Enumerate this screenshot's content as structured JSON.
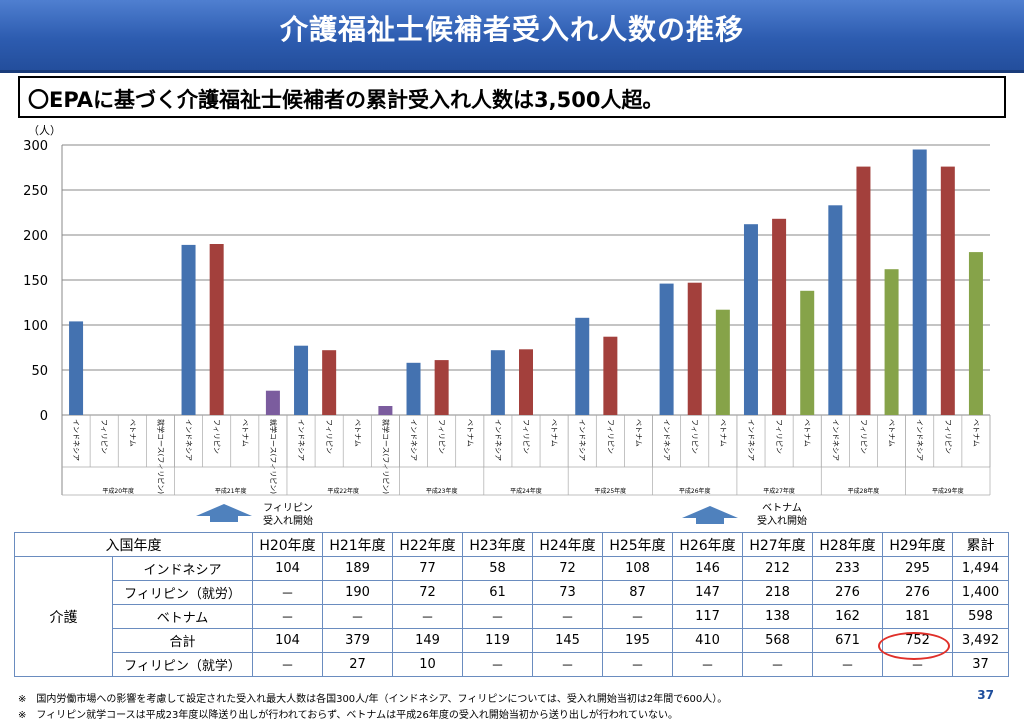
{
  "title": "介護福祉士候補者受入れ人数の推移",
  "summary": "〇EPAに基づく介護福祉士候補者の累計受入れ人数は3,500人超。",
  "colors": {
    "indonesia": "#4472b0",
    "philippines": "#a3403c",
    "vietnam": "#86a349",
    "philippines_study": "#7b5c9e"
  },
  "chart_data": {
    "type": "bar",
    "ylabel": "（人）",
    "ylim": [
      0,
      300
    ],
    "yticks": [
      0,
      50,
      100,
      150,
      200,
      250,
      300
    ],
    "grid": true,
    "groups": [
      {
        "label": "平成20年度",
        "bars": [
          {
            "name": "インドネシア",
            "value": 104,
            "series": "indonesia"
          },
          {
            "name": "フィリピン",
            "value": 0,
            "series": "philippines"
          },
          {
            "name": "ベトナム",
            "value": 0,
            "series": "vietnam"
          },
          {
            "name": "就学コース(フィリピン)",
            "value": 0,
            "series": "philippines_study"
          }
        ]
      },
      {
        "label": "平成21年度",
        "bars": [
          {
            "name": "インドネシア",
            "value": 189,
            "series": "indonesia"
          },
          {
            "name": "フィリピン",
            "value": 190,
            "series": "philippines"
          },
          {
            "name": "ベトナム",
            "value": 0,
            "series": "vietnam"
          },
          {
            "name": "就学コース(フィリピン)",
            "value": 27,
            "series": "philippines_study"
          }
        ]
      },
      {
        "label": "平成22年度",
        "bars": [
          {
            "name": "インドネシア",
            "value": 77,
            "series": "indonesia"
          },
          {
            "name": "フィリピン",
            "value": 72,
            "series": "philippines"
          },
          {
            "name": "ベトナム",
            "value": 0,
            "series": "vietnam"
          },
          {
            "name": "就学コース(フィリピン)",
            "value": 10,
            "series": "philippines_study"
          }
        ]
      },
      {
        "label": "平成23年度",
        "bars": [
          {
            "name": "インドネシア",
            "value": 58,
            "series": "indonesia"
          },
          {
            "name": "フィリピン",
            "value": 61,
            "series": "philippines"
          },
          {
            "name": "ベトナム",
            "value": 0,
            "series": "vietnam"
          }
        ]
      },
      {
        "label": "平成24年度",
        "bars": [
          {
            "name": "インドネシア",
            "value": 72,
            "series": "indonesia"
          },
          {
            "name": "フィリピン",
            "value": 73,
            "series": "philippines"
          },
          {
            "name": "ベトナム",
            "value": 0,
            "series": "vietnam"
          }
        ]
      },
      {
        "label": "平成25年度",
        "bars": [
          {
            "name": "インドネシア",
            "value": 108,
            "series": "indonesia"
          },
          {
            "name": "フィリピン",
            "value": 87,
            "series": "philippines"
          },
          {
            "name": "ベトナム",
            "value": 0,
            "series": "vietnam"
          }
        ]
      },
      {
        "label": "平成26年度",
        "bars": [
          {
            "name": "インドネシア",
            "value": 146,
            "series": "indonesia"
          },
          {
            "name": "フィリピン",
            "value": 147,
            "series": "philippines"
          },
          {
            "name": "ベトナム",
            "value": 117,
            "series": "vietnam"
          }
        ]
      },
      {
        "label": "平成27年度",
        "bars": [
          {
            "name": "インドネシア",
            "value": 212,
            "series": "indonesia"
          },
          {
            "name": "フィリピン",
            "value": 218,
            "series": "philippines"
          },
          {
            "name": "ベトナム",
            "value": 138,
            "series": "vietnam"
          }
        ]
      },
      {
        "label": "平成28年度",
        "bars": [
          {
            "name": "インドネシア",
            "value": 233,
            "series": "indonesia"
          },
          {
            "name": "フィリピン",
            "value": 276,
            "series": "philippines"
          },
          {
            "name": "ベトナム",
            "value": 162,
            "series": "vietnam"
          }
        ]
      },
      {
        "label": "平成29年度",
        "bars": [
          {
            "name": "インドネシア",
            "value": 295,
            "series": "indonesia"
          },
          {
            "name": "フィリピン",
            "value": 276,
            "series": "philippines"
          },
          {
            "name": "ベトナム",
            "value": 181,
            "series": "vietnam"
          }
        ]
      }
    ]
  },
  "annotations": {
    "philippines_start": [
      "フィリピン",
      "受入れ開始"
    ],
    "vietnam_start": [
      "ベトナム",
      "受入れ開始"
    ]
  },
  "table": {
    "header_label": "入国年度",
    "years": [
      "H20年度",
      "H21年度",
      "H22年度",
      "H23年度",
      "H24年度",
      "H25年度",
      "H26年度",
      "H27年度",
      "H28年度",
      "H29年度"
    ],
    "total_label": "累計",
    "group_label": "介護",
    "rows": [
      {
        "label": "インドネシア",
        "values": [
          "104",
          "189",
          "77",
          "58",
          "72",
          "108",
          "146",
          "212",
          "233",
          "295"
        ],
        "total": "1,494"
      },
      {
        "label": "フィリピン（就労）",
        "values": [
          "－",
          "190",
          "72",
          "61",
          "73",
          "87",
          "147",
          "218",
          "276",
          "276"
        ],
        "total": "1,400"
      },
      {
        "label": "ベトナム",
        "values": [
          "－",
          "－",
          "－",
          "－",
          "－",
          "－",
          "117",
          "138",
          "162",
          "181"
        ],
        "total": "598"
      },
      {
        "label": "合計",
        "values": [
          "104",
          "379",
          "149",
          "119",
          "145",
          "195",
          "410",
          "568",
          "671",
          "752"
        ],
        "total": "3,492"
      },
      {
        "label": "フィリピン（就学）",
        "values": [
          "－",
          "27",
          "10",
          "－",
          "－",
          "－",
          "－",
          "－",
          "－",
          "－"
        ],
        "total": "37"
      }
    ]
  },
  "footnotes": [
    "※　国内労働市場への影響を考慮して設定された受入れ最大人数は各国300人/年（インドネシア、フィリピンについては、受入れ開始当初は2年間で600人）。",
    "※　フィリピン就学コースは平成23年度以降送り出しが行われておらず、ベトナムは平成26年度の受入れ開始当初から送り出しが行われていない。"
  ],
  "page_number": "37"
}
